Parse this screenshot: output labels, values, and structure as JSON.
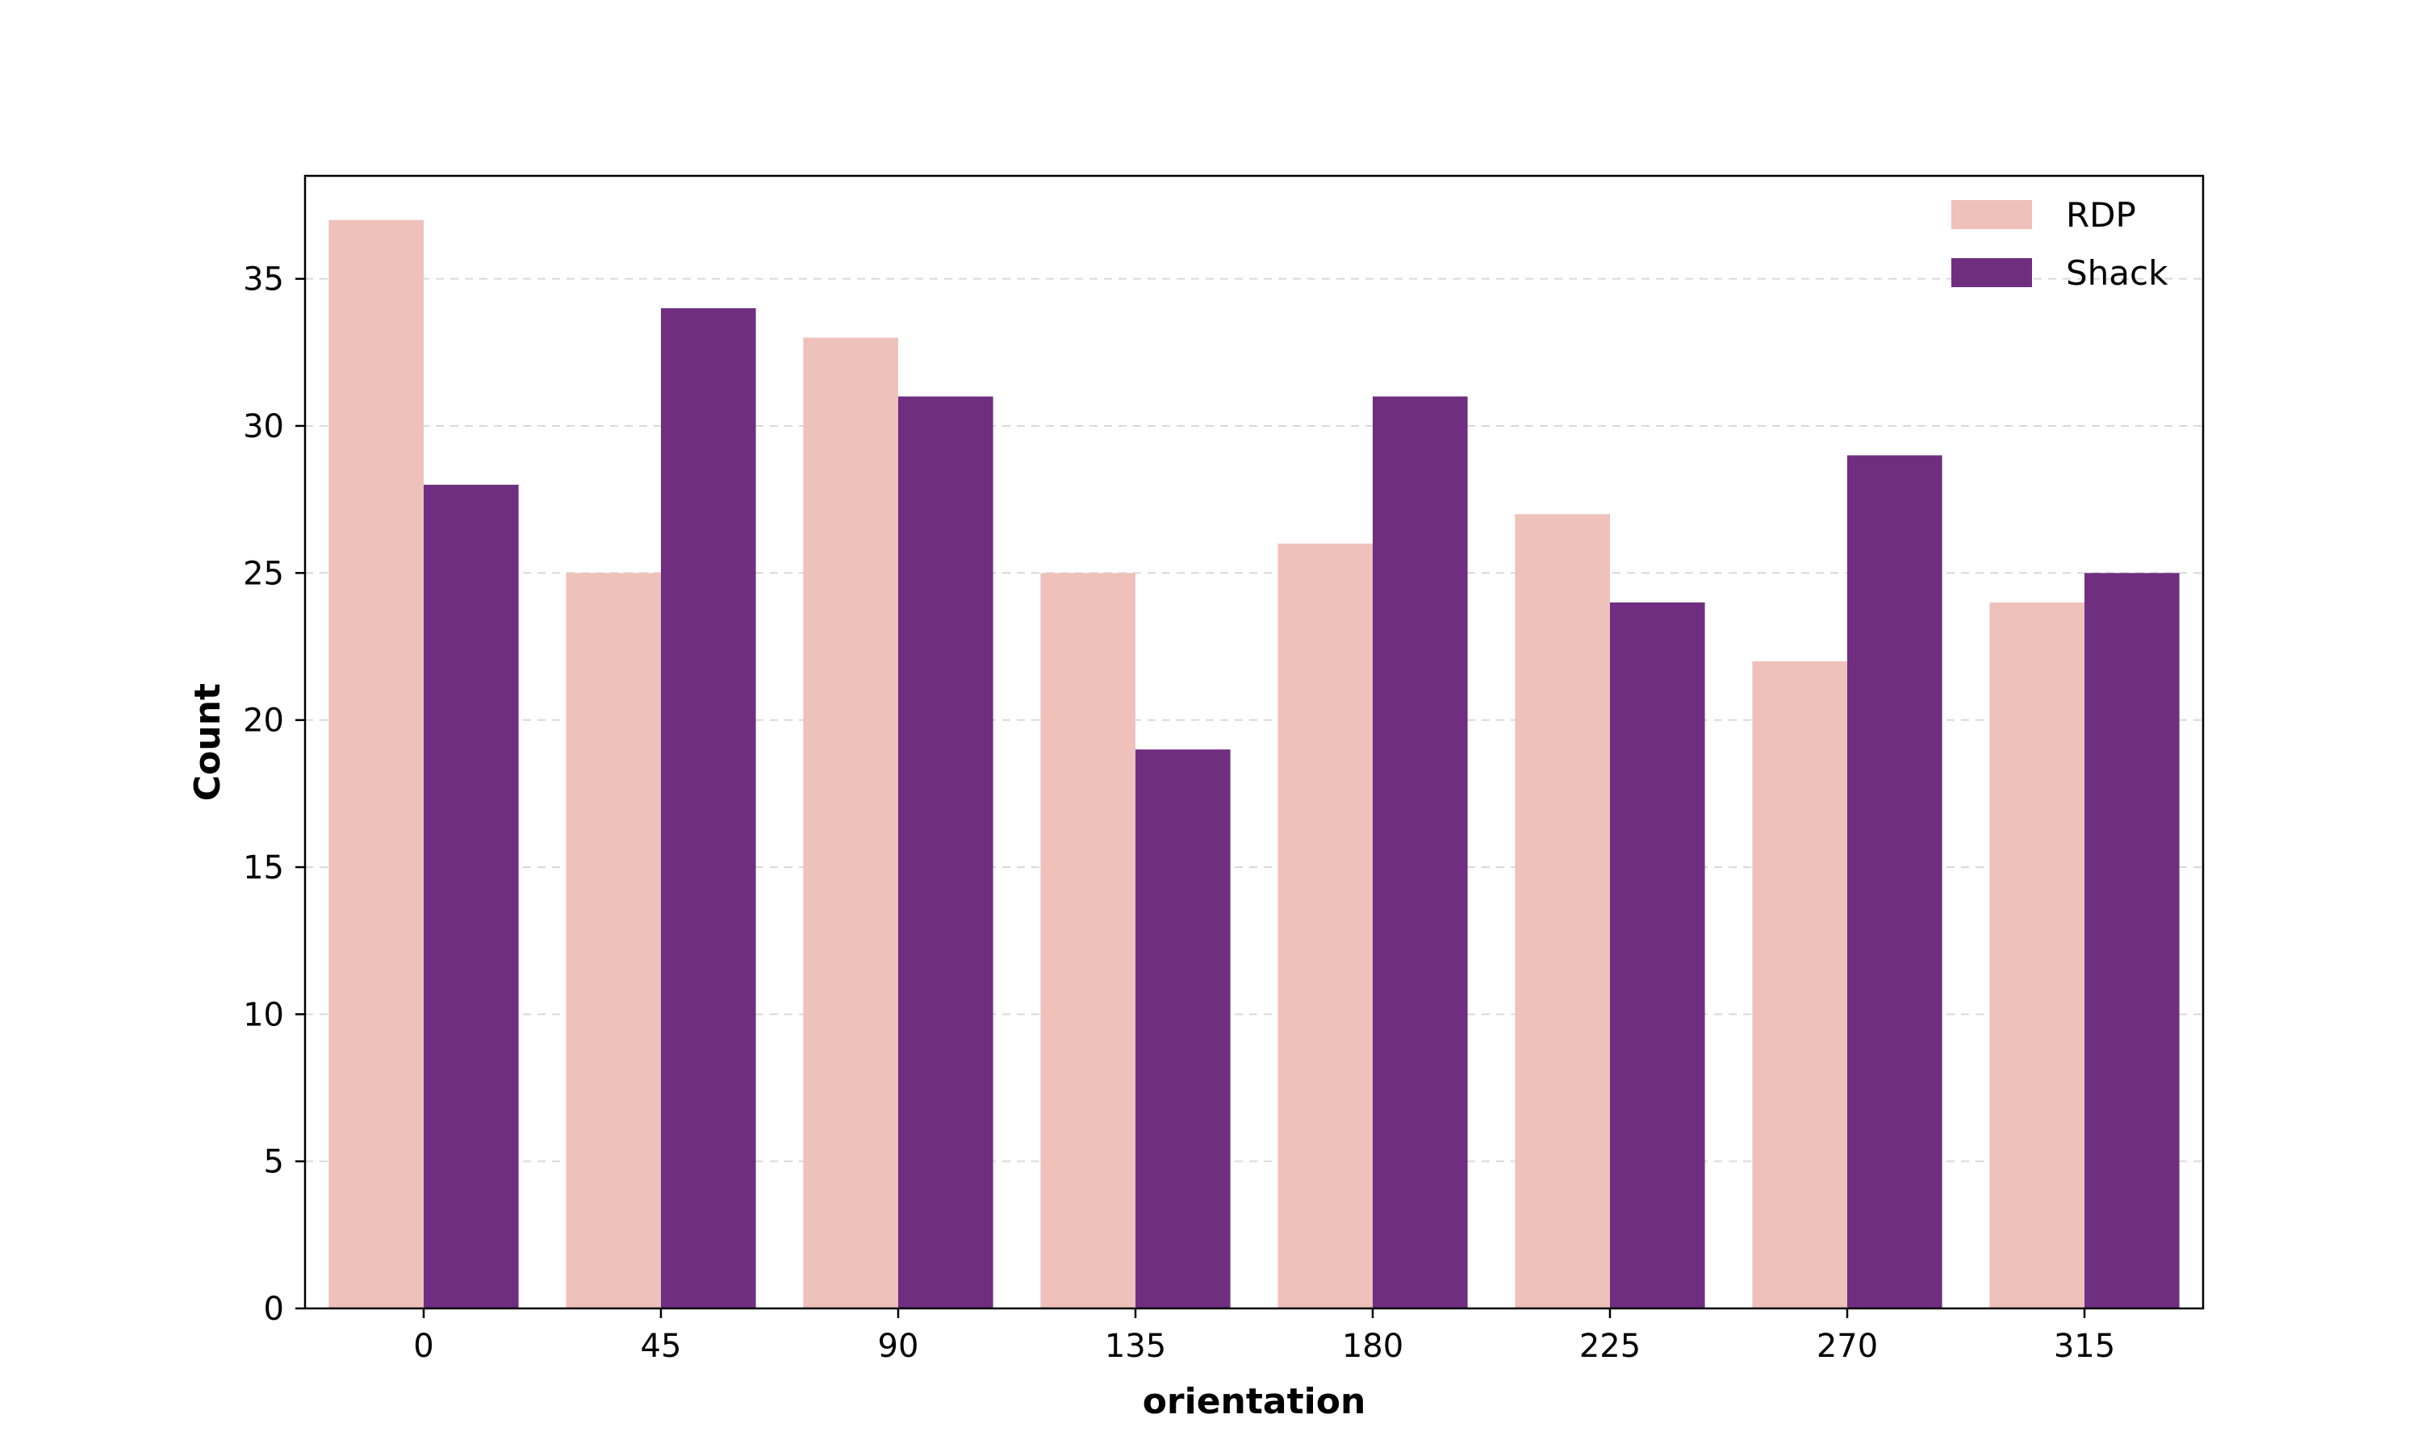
{
  "chart_data": {
    "type": "bar",
    "xlabel": "orientation",
    "ylabel": "Count",
    "categories": [
      "0",
      "45",
      "90",
      "135",
      "180",
      "225",
      "270",
      "315"
    ],
    "series": [
      {
        "name": "RDP",
        "color": "#efc1bb",
        "values": [
          37,
          25,
          33,
          25,
          26,
          27,
          22,
          24
        ]
      },
      {
        "name": "Shack",
        "color": "#6f2e80",
        "values": [
          28,
          34,
          31,
          19,
          31,
          24,
          29,
          25
        ]
      }
    ],
    "ylim": [
      0,
      38.5
    ],
    "yticks": [
      0,
      5,
      10,
      15,
      20,
      25,
      30,
      35
    ],
    "grid": true,
    "legend": "top-right"
  }
}
